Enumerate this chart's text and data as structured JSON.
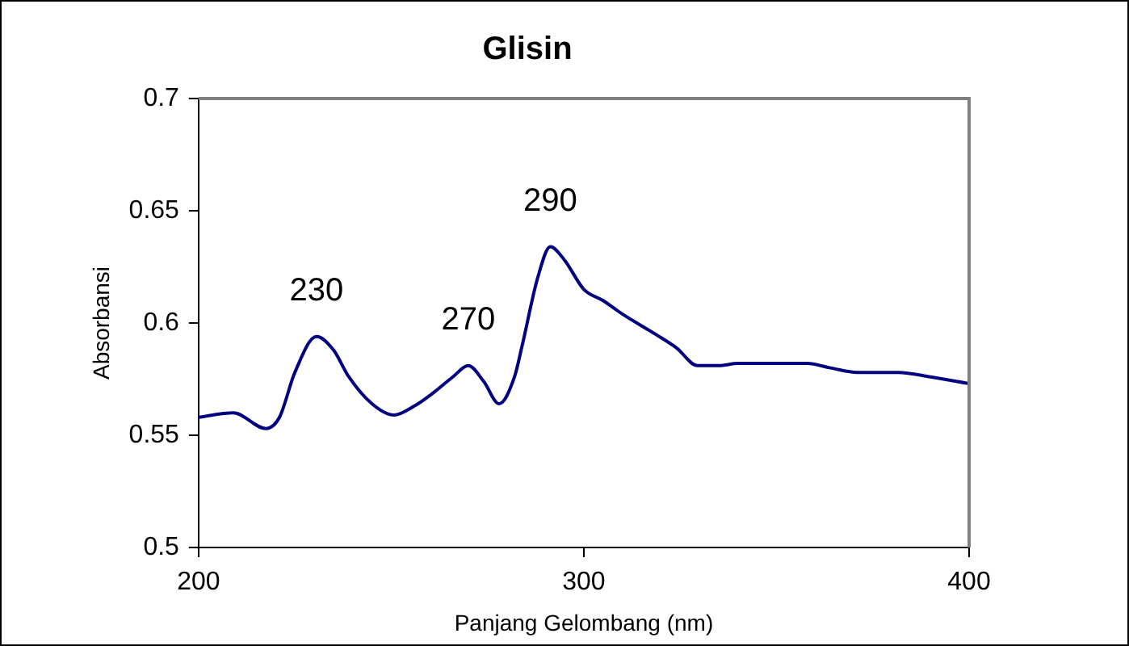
{
  "chart_data": {
    "type": "line",
    "title": "Glisin",
    "xlabel": "Panjang Gelombang (nm)",
    "ylabel": "Absorbansi",
    "x": [
      200,
      209,
      217.5,
      221,
      225,
      230.6,
      235,
      239,
      245,
      250.7,
      256,
      261,
      266,
      270,
      274,
      278,
      282,
      284,
      288,
      291.3,
      295,
      300,
      305,
      310,
      318.6,
      324,
      329.5,
      335,
      340,
      350,
      358,
      364,
      371,
      381.6,
      390,
      400
    ],
    "series": [
      {
        "color": "#000080",
        "values": [
          0.558,
          0.56,
          0.553,
          0.558,
          0.578,
          0.594,
          0.588,
          0.576,
          0.564,
          0.559,
          0.563,
          0.569,
          0.576,
          0.581,
          0.574,
          0.564,
          0.576,
          0.59,
          0.62,
          0.634,
          0.628,
          0.615,
          0.61,
          0.604,
          0.595,
          0.589,
          0.581,
          0.581,
          0.582,
          0.582,
          0.582,
          0.58,
          0.578,
          0.578,
          0.576,
          0.573
        ]
      }
    ],
    "xlim": [
      200,
      400
    ],
    "xticks": [
      200,
      300,
      400
    ],
    "ylim": [
      0.5,
      0.7
    ],
    "yticks": [
      0.5,
      0.55,
      0.6,
      0.65,
      0.7
    ],
    "grid": false,
    "legend": false,
    "marker": "none",
    "line_style": "solid",
    "annotations": [
      {
        "text": "230",
        "x": 230.6,
        "y": 0.594
      },
      {
        "text": "270",
        "x": 270,
        "y": 0.581
      },
      {
        "text": "290",
        "x": 291.3,
        "y": 0.634
      }
    ]
  }
}
